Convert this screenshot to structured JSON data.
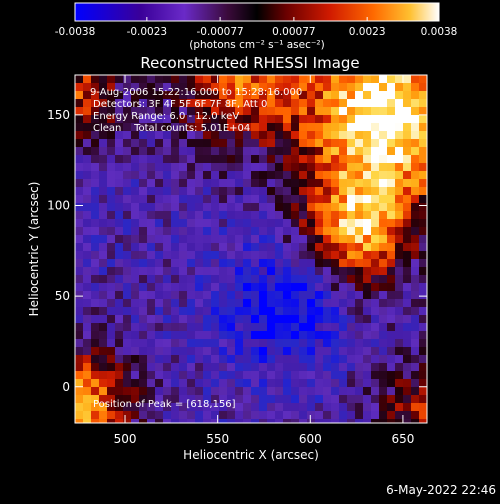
{
  "colorbar": {
    "tick_labels": [
      "-0.0038",
      "-0.0023",
      "-0.00077",
      "0.00077",
      "0.0023",
      "0.0038"
    ],
    "tick_values": [
      -0.0038,
      -0.0023,
      -0.00077,
      0.00077,
      0.0023,
      0.0038
    ],
    "range": [
      -0.0038,
      0.0038
    ],
    "units_label": "(photons cm⁻² s⁻¹ asec⁻²)",
    "colors": [
      "#0000ff",
      "#3a0099",
      "#5a1fb8",
      "#7a3ad0",
      "#3a0a3a",
      "#000000",
      "#5a0000",
      "#c01000",
      "#ff4000",
      "#ff9000",
      "#ffd040",
      "#ffffff"
    ]
  },
  "title": "Reconstructed RHESSI Image",
  "annotations": {
    "time_range": "9-Aug-2006 15:22:16.000 to 15:28:16.000",
    "detectors": "Detectors: 3F 4F 5F 6F 7F 8F, Att 0",
    "energy_range": "Energy Range: 6.0 - 12.0 keV",
    "clean_counts": "Clean    Total counts: 5.01E+04",
    "peak_position": "Position of Peak = [618,156]"
  },
  "x_axis": {
    "label": "Heliocentric X (arcsec)",
    "range": [
      473,
      663
    ],
    "tick_values": [
      500,
      550,
      600,
      650
    ],
    "tick_labels": [
      "500",
      "550",
      "600",
      "650"
    ]
  },
  "y_axis": {
    "label": "Heliocentric Y (arcsec)",
    "range": [
      -20,
      172
    ],
    "tick_values": [
      0,
      50,
      100,
      150
    ],
    "tick_labels": [
      "0",
      "50",
      "100",
      "150"
    ]
  },
  "footer": {
    "timestamp": "6-May-2022 22:46"
  }
}
